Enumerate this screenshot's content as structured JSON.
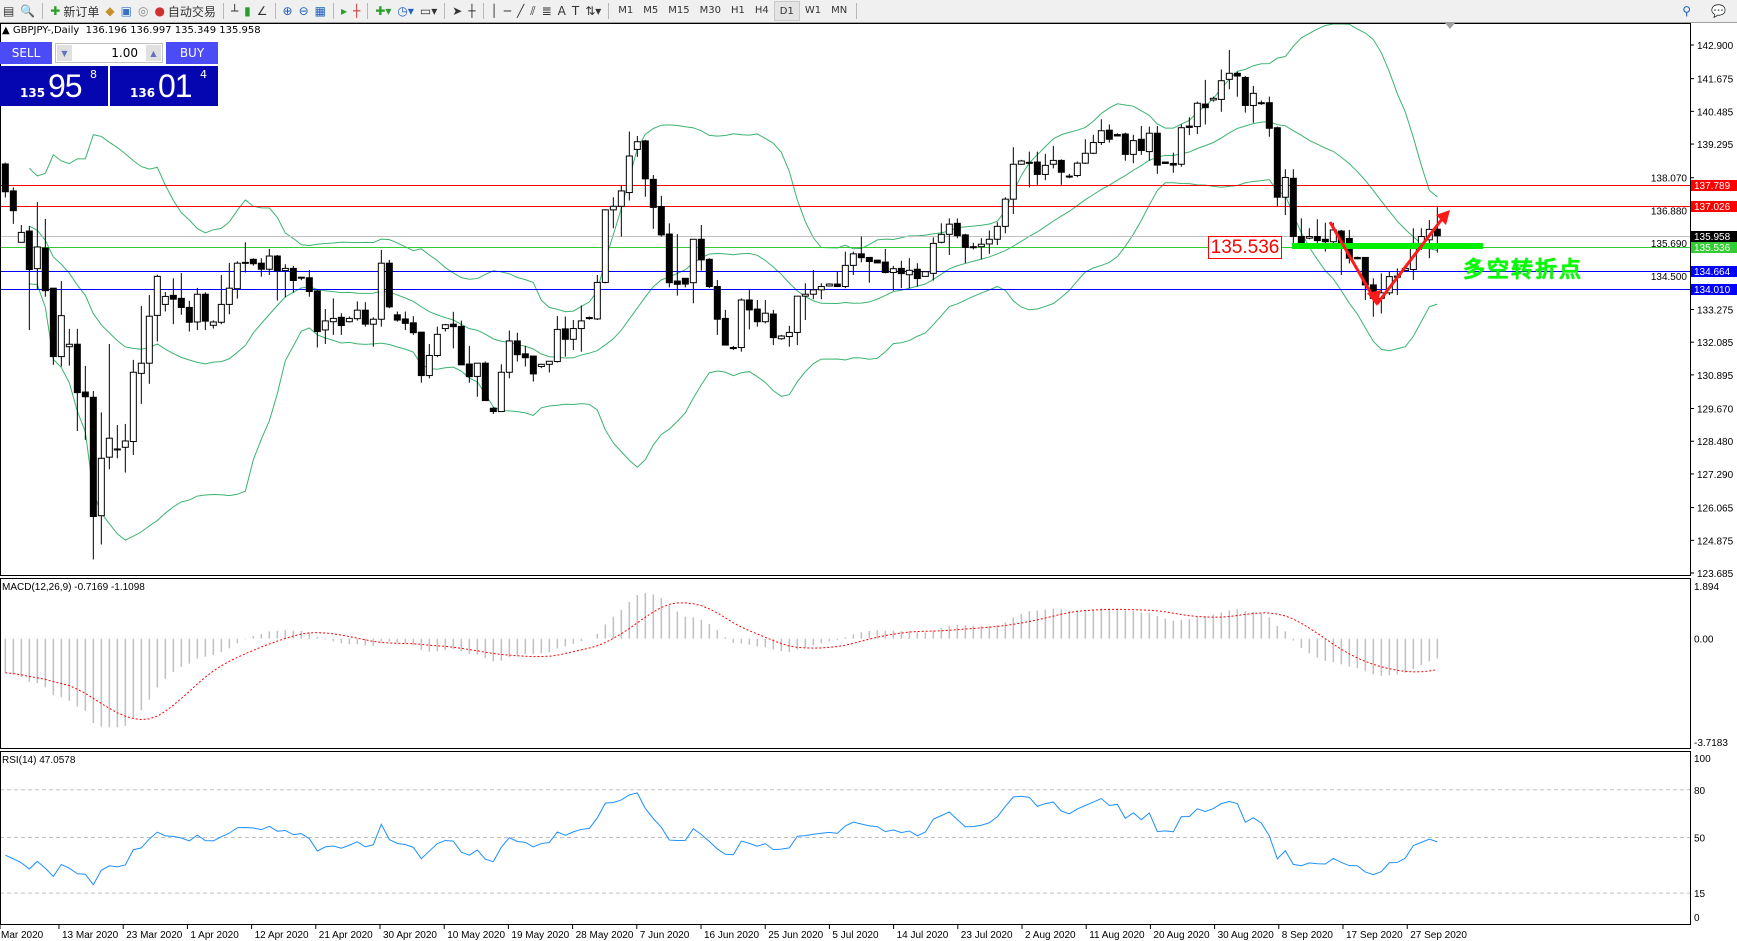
{
  "toolbar": {
    "new_order_label": "新订单",
    "auto_trading_label": "自动交易",
    "timeframes": [
      "M1",
      "M5",
      "M15",
      "M30",
      "H1",
      "H4",
      "D1",
      "W1",
      "MN"
    ],
    "active_timeframe": "D1"
  },
  "chart_header": {
    "symbol": "GBPJPY-,Daily",
    "ohlc": "136.196 136.997 135.349 135.958"
  },
  "one_click": {
    "sell_label": "SELL",
    "buy_label": "BUY",
    "lot": "1.00",
    "sell_price": {
      "prefix": "135",
      "big": "95",
      "pip": "8"
    },
    "buy_price": {
      "prefix": "136",
      "big": "01",
      "pip": "4"
    }
  },
  "annotations": {
    "level_box": "135.536",
    "note": "多空转折点"
  },
  "chart_data": [
    {
      "type": "candlestick",
      "title": "GBPJPY-,Daily",
      "ylim": [
        123.685,
        142.9
      ],
      "yticks": [
        "142.900",
        "141.675",
        "140.485",
        "139.295",
        "138.070",
        "136.880",
        "135.690",
        "134.500",
        "133.275",
        "132.085",
        "130.895",
        "129.670",
        "128.480",
        "127.290",
        "126.065",
        "124.875",
        "123.685"
      ],
      "xticks": [
        "Mar 2020",
        "13 Mar 2020",
        "23 Mar 2020",
        "1 Apr 2020",
        "12 Apr 2020",
        "21 Apr 2020",
        "30 Apr 2020",
        "10 May 2020",
        "19 May 2020",
        "28 May 2020",
        "7 Jun 2020",
        "16 Jun 2020",
        "25 Jun 2020",
        "5 Jul 2020",
        "14 Jul 2020",
        "23 Jul 2020",
        "2 Aug 2020",
        "11 Aug 2020",
        "20 Aug 2020",
        "30 Aug 2020",
        "8 Sep 2020",
        "17 Sep 2020",
        "27 Sep 2020"
      ],
      "overlay": "bollinger-bands",
      "colors": {
        "bull_body": "#ffffff",
        "bear_body": "#000000",
        "bands": "#3cb371"
      },
      "hlines": [
        {
          "value": "137.789",
          "color": "#ff0000"
        },
        {
          "value": "137.026",
          "color": "#ff0000"
        },
        {
          "value": "135.958",
          "color": "#000000",
          "line": "#c0c0c0"
        },
        {
          "value": "135.536",
          "color": "#33cc33"
        },
        {
          "value": "134.664",
          "color": "#0000ff"
        },
        {
          "value": "134.010",
          "color": "#0000ff"
        }
      ],
      "ohlc": [
        [
          138.57,
          138.62,
          137.35,
          137.56
        ],
        [
          137.59,
          137.72,
          136.39,
          136.87
        ],
        [
          135.72,
          136.35,
          135.72,
          136.08
        ],
        [
          136.13,
          136.31,
          132.53,
          134.73
        ],
        [
          134.76,
          137.18,
          133.99,
          135.55
        ],
        [
          135.51,
          136.57,
          133.74,
          133.96
        ],
        [
          134.05,
          134.05,
          131.26,
          131.56
        ],
        [
          131.56,
          134.31,
          131.2,
          133.05
        ],
        [
          131.92,
          132.57,
          131.23,
          132.01
        ],
        [
          132.01,
          132.57,
          128.85,
          130.25
        ],
        [
          130.27,
          131.22,
          128.53,
          130.1
        ],
        [
          130.08,
          130.31,
          124.18,
          125.74
        ],
        [
          125.77,
          129.53,
          124.72,
          127.86
        ],
        [
          127.9,
          132.02,
          127.46,
          128.59
        ],
        [
          128.18,
          129.07,
          127.86,
          128.2
        ],
        [
          128.26,
          129.11,
          127.34,
          128.49
        ],
        [
          128.47,
          131.44,
          127.98,
          130.99
        ],
        [
          130.95,
          133.4,
          129.84,
          131.32
        ],
        [
          131.32,
          133.8,
          130.57,
          133.03
        ],
        [
          133.06,
          134.54,
          132.11,
          134.48
        ],
        [
          133.46,
          133.91,
          133.2,
          133.75
        ],
        [
          133.79,
          134.41,
          132.74,
          133.65
        ],
        [
          133.68,
          134.6,
          133.08,
          133.35
        ],
        [
          133.35,
          133.59,
          132.47,
          132.81
        ],
        [
          132.82,
          134.06,
          132.53,
          133.83
        ],
        [
          133.83,
          133.9,
          132.53,
          132.85
        ],
        [
          132.7,
          132.88,
          132.58,
          132.82
        ],
        [
          132.81,
          134.53,
          132.74,
          133.46
        ],
        [
          133.46,
          134.97,
          133.1,
          134.05
        ],
        [
          134.03,
          135.03,
          133.67,
          134.96
        ],
        [
          134.98,
          135.72,
          134.62,
          134.99
        ],
        [
          135.1,
          135.14,
          134.87,
          134.94
        ],
        [
          134.96,
          135.14,
          134.47,
          134.74
        ],
        [
          134.74,
          135.48,
          134.53,
          135.22
        ],
        [
          135.22,
          135.26,
          133.6,
          134.68
        ],
        [
          134.69,
          134.92,
          133.72,
          134.77
        ],
        [
          134.77,
          134.86,
          133.89,
          134.33
        ],
        [
          134.45,
          134.46,
          134.34,
          134.44
        ],
        [
          134.43,
          134.71,
          133.74,
          133.93
        ],
        [
          133.95,
          133.99,
          131.89,
          132.47
        ],
        [
          132.53,
          133.29,
          132.02,
          132.86
        ],
        [
          132.83,
          133.68,
          132.35,
          132.95
        ],
        [
          132.99,
          133.14,
          132.35,
          132.69
        ],
        [
          132.83,
          133.02,
          132.8,
          132.95
        ],
        [
          132.94,
          133.57,
          132.87,
          133.25
        ],
        [
          133.25,
          133.54,
          132.65,
          132.74
        ],
        [
          132.74,
          132.99,
          131.92,
          132.92
        ],
        [
          132.92,
          135.44,
          132.65,
          134.96
        ],
        [
          134.96,
          135.08,
          133.32,
          133.37
        ],
        [
          133.08,
          133.2,
          132.83,
          132.89
        ],
        [
          132.93,
          133.2,
          132.53,
          132.77
        ],
        [
          132.79,
          133.03,
          132.35,
          132.43
        ],
        [
          132.45,
          132.45,
          130.61,
          130.87
        ],
        [
          130.87,
          132.02,
          130.77,
          131.6
        ],
        [
          131.6,
          132.65,
          131.54,
          132.37
        ],
        [
          132.58,
          132.75,
          132.47,
          132.72
        ],
        [
          132.74,
          133.19,
          131.86,
          132.65
        ],
        [
          132.66,
          132.87,
          131.26,
          131.26
        ],
        [
          131.29,
          131.95,
          130.61,
          130.83
        ],
        [
          130.84,
          131.32,
          130.1,
          131.32
        ],
        [
          131.32,
          131.38,
          129.96,
          129.96
        ],
        [
          129.68,
          129.72,
          129.47,
          129.56
        ],
        [
          129.56,
          131.28,
          129.56,
          130.99
        ],
        [
          130.99,
          132.51,
          130.77,
          132.13
        ],
        [
          132.13,
          132.43,
          131.38,
          131.63
        ],
        [
          131.66,
          131.95,
          131.2,
          131.52
        ],
        [
          131.58,
          131.58,
          130.65,
          130.93
        ],
        [
          131.2,
          131.3,
          131.14,
          131.28
        ],
        [
          131.28,
          131.39,
          130.98,
          131.39
        ],
        [
          131.38,
          133.04,
          131.34,
          132.55
        ],
        [
          132.57,
          133.02,
          131.56,
          132.19
        ],
        [
          132.19,
          132.89,
          131.8,
          132.58
        ],
        [
          132.58,
          133.42,
          131.74,
          132.86
        ],
        [
          132.98,
          133.02,
          132.9,
          132.98
        ],
        [
          132.93,
          134.53,
          132.89,
          134.26
        ],
        [
          134.26,
          136.92,
          134.23,
          136.9
        ],
        [
          136.9,
          137.36,
          136.23,
          137.03
        ],
        [
          137.03,
          137.81,
          135.93,
          137.59
        ],
        [
          137.53,
          139.75,
          137.24,
          138.86
        ],
        [
          139.1,
          139.59,
          138.83,
          139.38
        ],
        [
          139.41,
          139.45,
          137.38,
          138.03
        ],
        [
          138.01,
          138.17,
          136.21,
          136.99
        ],
        [
          137.02,
          137.41,
          135.93,
          135.99
        ],
        [
          136.02,
          136.41,
          134.08,
          134.25
        ],
        [
          134.31,
          136.02,
          133.78,
          134.19
        ],
        [
          134.41,
          134.41,
          134.08,
          134.2
        ],
        [
          134.25,
          135.83,
          133.5,
          135.83
        ],
        [
          135.83,
          136.35,
          134.69,
          135.08
        ],
        [
          135.1,
          135.14,
          134.05,
          134.11
        ],
        [
          134.11,
          134.35,
          132.35,
          132.92
        ],
        [
          132.95,
          133.26,
          131.98,
          131.98
        ],
        [
          131.89,
          131.95,
          131.8,
          131.89
        ],
        [
          131.89,
          133.68,
          131.74,
          133.62
        ],
        [
          133.62,
          134.01,
          132.55,
          133.26
        ],
        [
          133.29,
          133.62,
          132.65,
          132.83
        ],
        [
          132.83,
          133.62,
          132.77,
          133.14
        ],
        [
          133.11,
          133.26,
          131.98,
          132.25
        ],
        [
          132.21,
          132.35,
          132.17,
          132.31
        ],
        [
          132.29,
          132.68,
          131.92,
          132.44
        ],
        [
          132.44,
          133.76,
          131.98,
          133.76
        ],
        [
          133.76,
          134.23,
          132.89,
          133.83
        ],
        [
          133.83,
          134.71,
          133.65,
          133.99
        ],
        [
          133.99,
          134.23,
          133.65,
          134.11
        ],
        [
          134.13,
          134.23,
          134.11,
          134.2
        ],
        [
          134.2,
          134.65,
          134.11,
          134.11
        ],
        [
          134.11,
          135.38,
          134.05,
          134.88
        ],
        [
          134.88,
          135.38,
          134.53,
          135.3
        ],
        [
          135.3,
          135.93,
          134.99,
          135.16
        ],
        [
          135.17,
          135.17,
          134.25,
          135.02
        ],
        [
          135.07,
          135.07,
          134.97,
          134.97
        ],
        [
          135.0,
          135.48,
          134.59,
          134.62
        ],
        [
          134.62,
          134.86,
          133.96,
          134.76
        ],
        [
          134.77,
          135.05,
          134.05,
          134.58
        ],
        [
          134.54,
          135.14,
          134.05,
          134.7
        ],
        [
          134.74,
          134.96,
          134.11,
          134.4
        ],
        [
          134.48,
          134.65,
          134.48,
          134.65
        ],
        [
          134.59,
          135.9,
          134.33,
          135.68
        ],
        [
          135.72,
          136.41,
          135.68,
          136.01
        ],
        [
          136.01,
          136.59,
          135.26,
          136.38
        ],
        [
          136.41,
          136.59,
          135.87,
          135.96
        ],
        [
          135.99,
          136.03,
          134.96,
          135.53
        ],
        [
          135.56,
          135.7,
          135.46,
          135.56
        ],
        [
          135.56,
          135.87,
          135.1,
          135.65
        ],
        [
          135.66,
          136.15,
          135.3,
          135.83
        ],
        [
          135.83,
          136.45,
          135.62,
          136.3
        ],
        [
          136.3,
          137.36,
          136.05,
          137.29
        ],
        [
          137.29,
          139.18,
          136.75,
          138.56
        ],
        [
          138.56,
          138.72,
          138.54,
          138.68
        ],
        [
          138.63,
          139.02,
          137.72,
          138.63
        ],
        [
          138.64,
          139.02,
          137.81,
          138.19
        ],
        [
          138.19,
          138.94,
          137.98,
          138.52
        ],
        [
          138.56,
          139.23,
          138.41,
          138.7
        ],
        [
          138.7,
          138.74,
          137.81,
          138.27
        ],
        [
          138.13,
          138.21,
          138.05,
          138.13
        ],
        [
          138.15,
          138.66,
          138.09,
          138.6
        ],
        [
          138.6,
          139.47,
          138.57,
          138.96
        ],
        [
          138.96,
          139.63,
          138.93,
          139.35
        ],
        [
          139.35,
          140.2,
          139.26,
          139.78
        ],
        [
          139.8,
          140.01,
          139.35,
          139.47
        ],
        [
          139.64,
          139.69,
          139.57,
          139.59
        ],
        [
          139.66,
          139.71,
          138.69,
          138.92
        ],
        [
          138.92,
          139.63,
          138.6,
          139.42
        ],
        [
          139.47,
          139.95,
          138.9,
          139.06
        ],
        [
          139.02,
          139.93,
          138.69,
          139.69
        ],
        [
          139.69,
          139.95,
          138.21,
          138.53
        ],
        [
          138.64,
          138.64,
          138.59,
          138.59
        ],
        [
          138.59,
          138.98,
          138.25,
          138.53
        ],
        [
          138.56,
          140.01,
          138.47,
          139.89
        ],
        [
          139.95,
          140.27,
          139.62,
          139.9
        ],
        [
          139.93,
          140.84,
          139.66,
          140.78
        ],
        [
          140.75,
          141.63,
          140.01,
          140.62
        ],
        [
          140.9,
          141.02,
          140.84,
          140.96
        ],
        [
          140.92,
          142.01,
          140.47,
          141.6
        ],
        [
          141.65,
          142.72,
          141.29,
          141.87
        ],
        [
          141.87,
          141.93,
          141.02,
          141.77
        ],
        [
          141.72,
          141.77,
          140.44,
          140.7
        ],
        [
          140.7,
          141.41,
          140.07,
          141.14
        ],
        [
          140.8,
          140.88,
          140.72,
          140.8
        ],
        [
          140.8,
          141.02,
          139.56,
          139.87
        ],
        [
          139.89,
          139.93,
          137.02,
          137.36
        ],
        [
          137.36,
          138.38,
          136.71,
          138.08
        ],
        [
          138.05,
          138.38,
          135.68,
          135.93
        ],
        [
          135.93,
          136.59,
          135.68,
          135.68
        ],
        [
          135.87,
          136.23,
          135.83,
          135.93
        ],
        [
          135.93,
          136.56,
          135.68,
          135.78
        ],
        [
          135.83,
          136.43,
          135.38,
          135.74
        ],
        [
          135.74,
          136.43,
          135.68,
          136.17
        ],
        [
          136.13,
          136.17,
          134.53,
          135.62
        ],
        [
          135.86,
          136.17,
          134.95,
          135.14
        ],
        [
          135.17,
          135.2,
          135.1,
          135.12
        ],
        [
          135.17,
          135.17,
          133.62,
          134.17
        ],
        [
          134.17,
          134.41,
          133.01,
          133.68
        ],
        [
          133.68,
          134.59,
          133.13,
          133.88
        ],
        [
          133.88,
          134.65,
          133.8,
          134.47
        ],
        [
          134.45,
          134.77,
          133.8,
          134.49
        ],
        [
          134.69,
          134.77,
          134.69,
          134.77
        ],
        [
          134.73,
          136.23,
          134.35,
          135.68
        ],
        [
          135.68,
          136.23,
          135.44,
          135.93
        ],
        [
          135.81,
          136.53,
          135.14,
          136.19
        ],
        [
          136.196,
          136.997,
          135.349,
          135.958
        ]
      ]
    },
    {
      "type": "bar+line",
      "title": "MACD(12,26,9) -0.7169 -1.1098",
      "ylim": [
        -3.7183,
        1.894
      ],
      "yticks": [
        "1.894",
        "0.00",
        "-3.7183"
      ],
      "colors": {
        "histogram": "#c0c0c0",
        "signal": "#ff0000"
      }
    },
    {
      "type": "line",
      "title": "RSI(14) 47.0578",
      "ylim": [
        0,
        100
      ],
      "yticks": [
        "100",
        "80",
        "50",
        "15",
        "0"
      ],
      "levels": [
        80,
        50,
        15
      ],
      "colors": {
        "line": "#1e90ff"
      }
    }
  ]
}
